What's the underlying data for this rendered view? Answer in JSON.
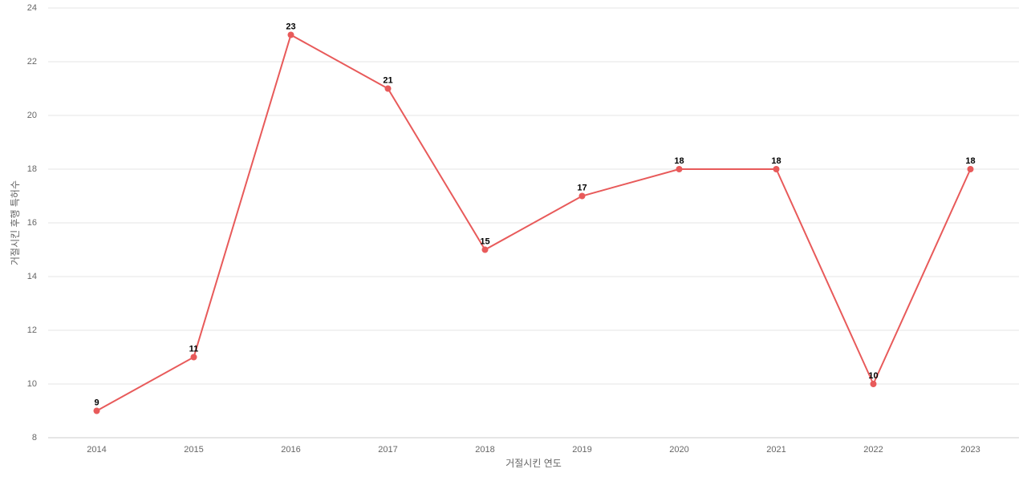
{
  "chart_data": {
    "type": "line",
    "x_label": "거절시킨 연도",
    "y_label": "거절시킨 후행 특허수",
    "categories": [
      "2014",
      "2015",
      "2016",
      "2017",
      "2018",
      "2019",
      "2020",
      "2021",
      "2022",
      "2023"
    ],
    "values": [
      9,
      11,
      23,
      21,
      15,
      17,
      18,
      18,
      10,
      18
    ],
    "color": "#e85a5a",
    "ylim": [
      8,
      24
    ],
    "yticks": [
      8,
      10,
      12,
      14,
      16,
      18,
      20,
      22,
      24
    ],
    "grid": true
  }
}
